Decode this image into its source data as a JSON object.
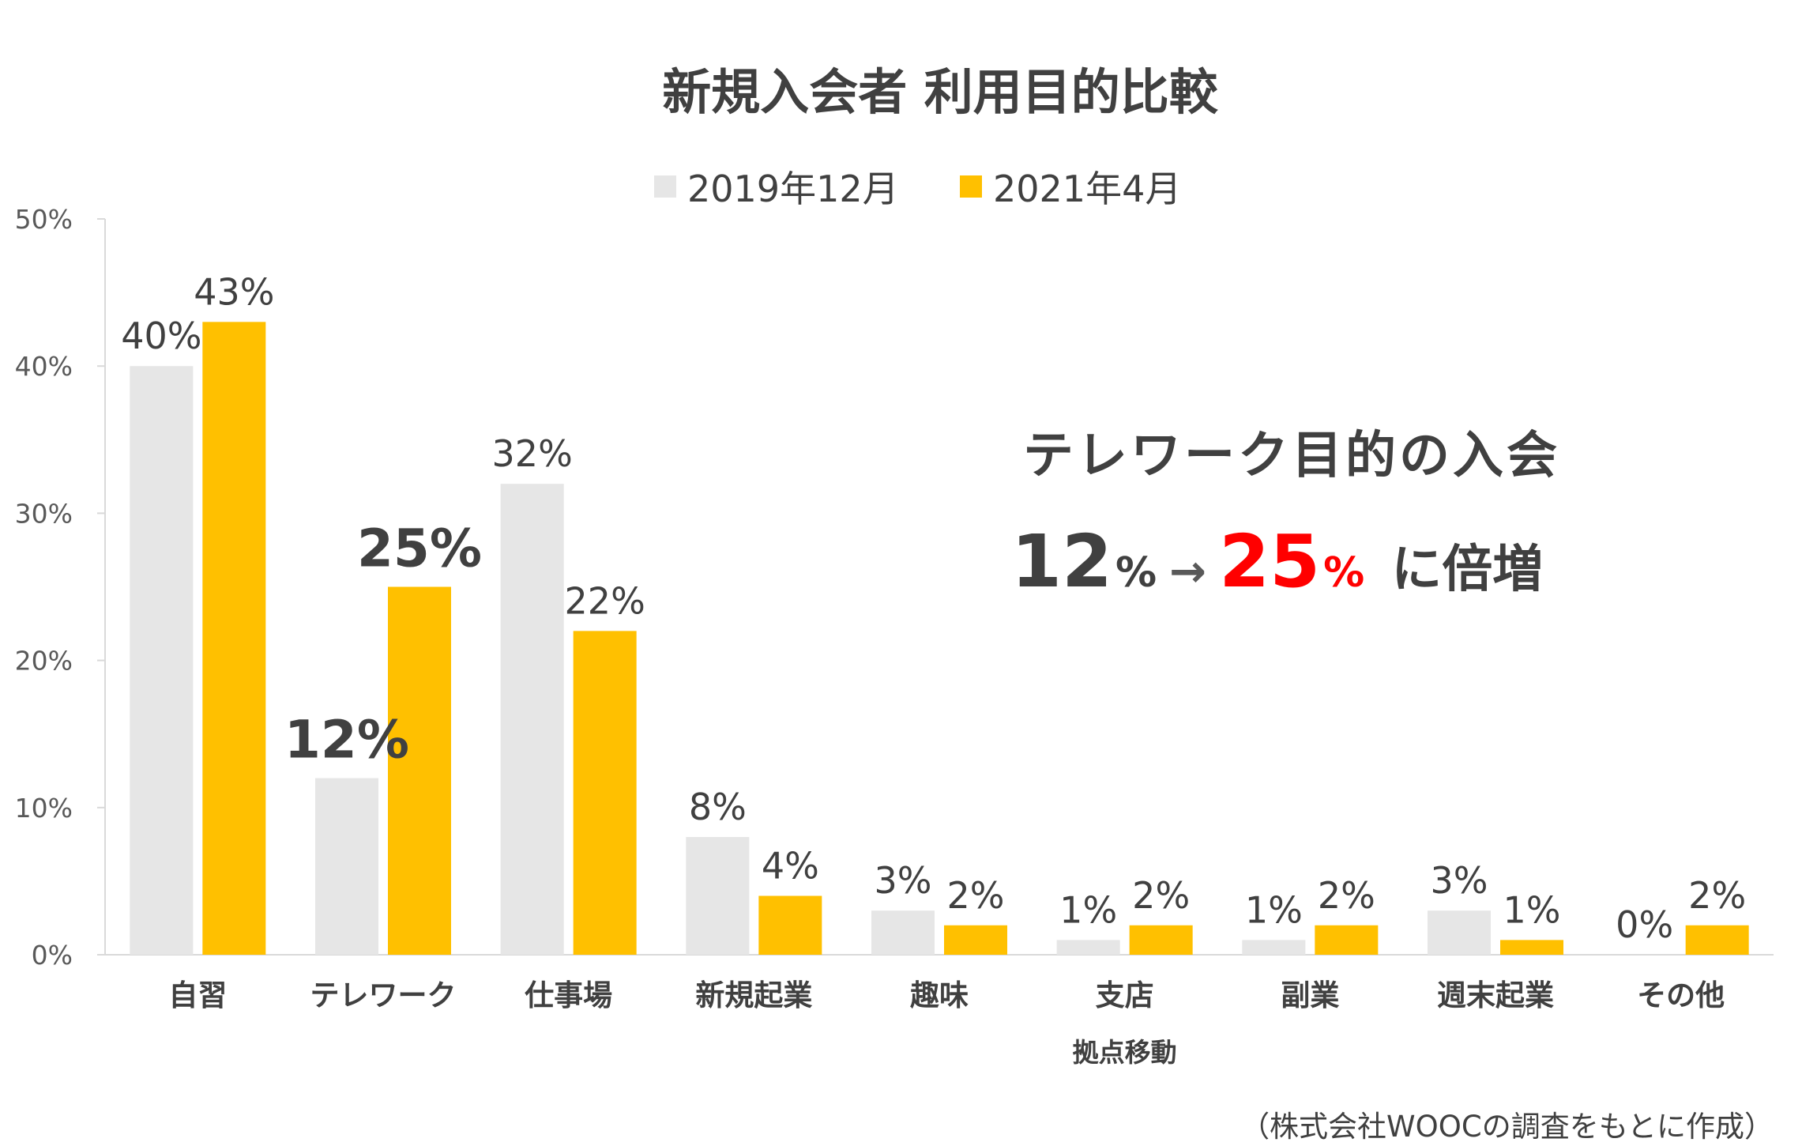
{
  "chart_data": {
    "type": "bar",
    "title": "新規入会者 利用目的比較",
    "categories": [
      "自習",
      "テレワーク",
      "仕事場",
      "新規起業",
      "趣味",
      "支店",
      "副業",
      "週末起業",
      "その他"
    ],
    "category_sublabels": {
      "5": "拠点移動"
    },
    "series": [
      {
        "name": "2019年12月",
        "color": "#e6e6e6",
        "values": [
          40,
          12,
          32,
          8,
          3,
          1,
          1,
          3,
          0
        ],
        "labels": [
          "40%",
          "12%",
          "32%",
          "8%",
          "3%",
          "1%",
          "1%",
          "3%",
          "0%"
        ]
      },
      {
        "name": "2021年4月",
        "color": "#ffc000",
        "values": [
          43,
          25,
          22,
          4,
          2,
          2,
          2,
          1,
          2
        ],
        "labels": [
          "43%",
          "25%",
          "22%",
          "4%",
          "2%",
          "2%",
          "2%",
          "1%",
          "2%"
        ]
      }
    ],
    "emphasized_category": 1,
    "yticks": [
      "0%",
      "10%",
      "20%",
      "30%",
      "40%",
      "50%"
    ],
    "ylim": [
      0,
      50
    ],
    "legend_position": "top-center",
    "grid": false,
    "xlabel": "",
    "ylabel": ""
  },
  "annotation": {
    "headline": "テレワーク目的の入会",
    "from_value": "12",
    "from_unit": "%",
    "arrow": "→",
    "to_value": "25",
    "to_unit": "%",
    "tail": "に倍増",
    "highlight_color": "#ff0000"
  },
  "source_note": "（株式会社WOOCの調査をもとに作成）"
}
